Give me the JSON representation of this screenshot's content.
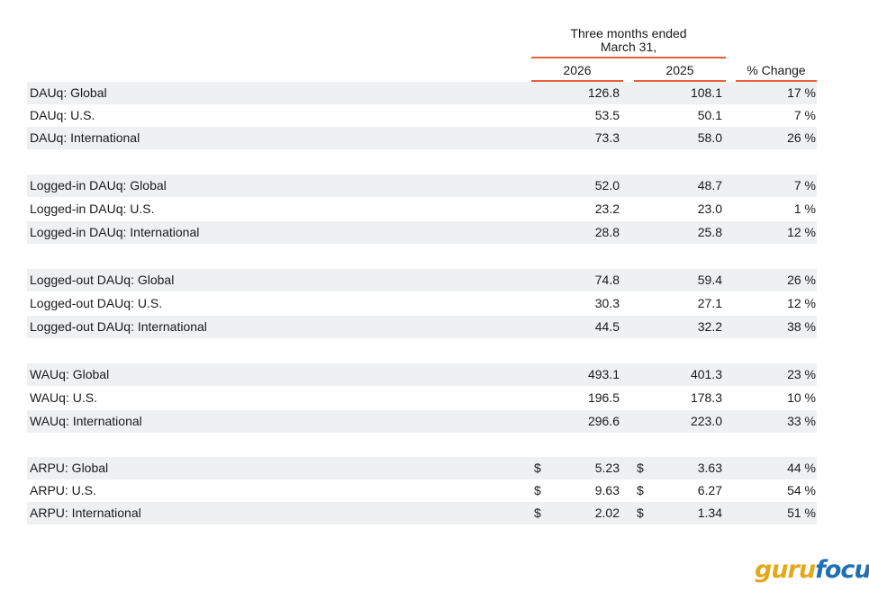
{
  "header": {
    "group_title_line1": "Three months ended",
    "group_title_line2": "March 31,",
    "col_2026": "2026",
    "col_2025": "2025",
    "col_change": "% Change"
  },
  "groups": [
    {
      "rows": [
        {
          "label": "DAUq: Global",
          "v2026": "126.8",
          "v2025": "108.1",
          "change": "17 %"
        },
        {
          "label": "DAUq: U.S.",
          "v2026": "53.5",
          "v2025": "50.1",
          "change": "7 %"
        },
        {
          "label": "DAUq: International",
          "v2026": "73.3",
          "v2025": "58.0",
          "change": "26 %"
        }
      ]
    },
    {
      "rows": [
        {
          "label": "Logged-in DAUq: Global",
          "v2026": "52.0",
          "v2025": "48.7",
          "change": "7 %"
        },
        {
          "label": "Logged-in DAUq: U.S.",
          "v2026": "23.2",
          "v2025": "23.0",
          "change": "1 %"
        },
        {
          "label": "Logged-in DAUq: International",
          "v2026": "28.8",
          "v2025": "25.8",
          "change": "12 %"
        }
      ]
    },
    {
      "rows": [
        {
          "label": "Logged-out DAUq: Global",
          "v2026": "74.8",
          "v2025": "59.4",
          "change": "26 %"
        },
        {
          "label": "Logged-out DAUq: U.S.",
          "v2026": "30.3",
          "v2025": "27.1",
          "change": "12 %"
        },
        {
          "label": "Logged-out DAUq: International",
          "v2026": "44.5",
          "v2025": "32.2",
          "change": "38 %"
        }
      ]
    },
    {
      "rows": [
        {
          "label": "WAUq: Global",
          "v2026": "493.1",
          "v2025": "401.3",
          "change": "23 %"
        },
        {
          "label": "WAUq: U.S.",
          "v2026": "196.5",
          "v2025": "178.3",
          "change": "10 %"
        },
        {
          "label": "WAUq: International",
          "v2026": "296.6",
          "v2025": "223.0",
          "change": "33 %"
        }
      ]
    },
    {
      "rows": [
        {
          "label": "ARPU: Global",
          "d2026": "$",
          "v2026": "5.23",
          "d2025": "$",
          "v2025": "3.63",
          "change": "44 %"
        },
        {
          "label": "ARPU: U.S.",
          "d2026": "$",
          "v2026": "9.63",
          "d2025": "$",
          "v2025": "6.27",
          "change": "54 %"
        },
        {
          "label": "ARPU: International",
          "d2026": "$",
          "v2026": "2.02",
          "d2025": "$",
          "v2025": "1.34",
          "change": "51 %"
        }
      ]
    }
  ],
  "logo": {
    "part1": "guru",
    "part2": "focus"
  },
  "colors": {
    "accent": "#e8603c",
    "row_shade": "#eef0f2",
    "logo_gold": "#e3a81b",
    "logo_blue": "#1f6fb5"
  }
}
